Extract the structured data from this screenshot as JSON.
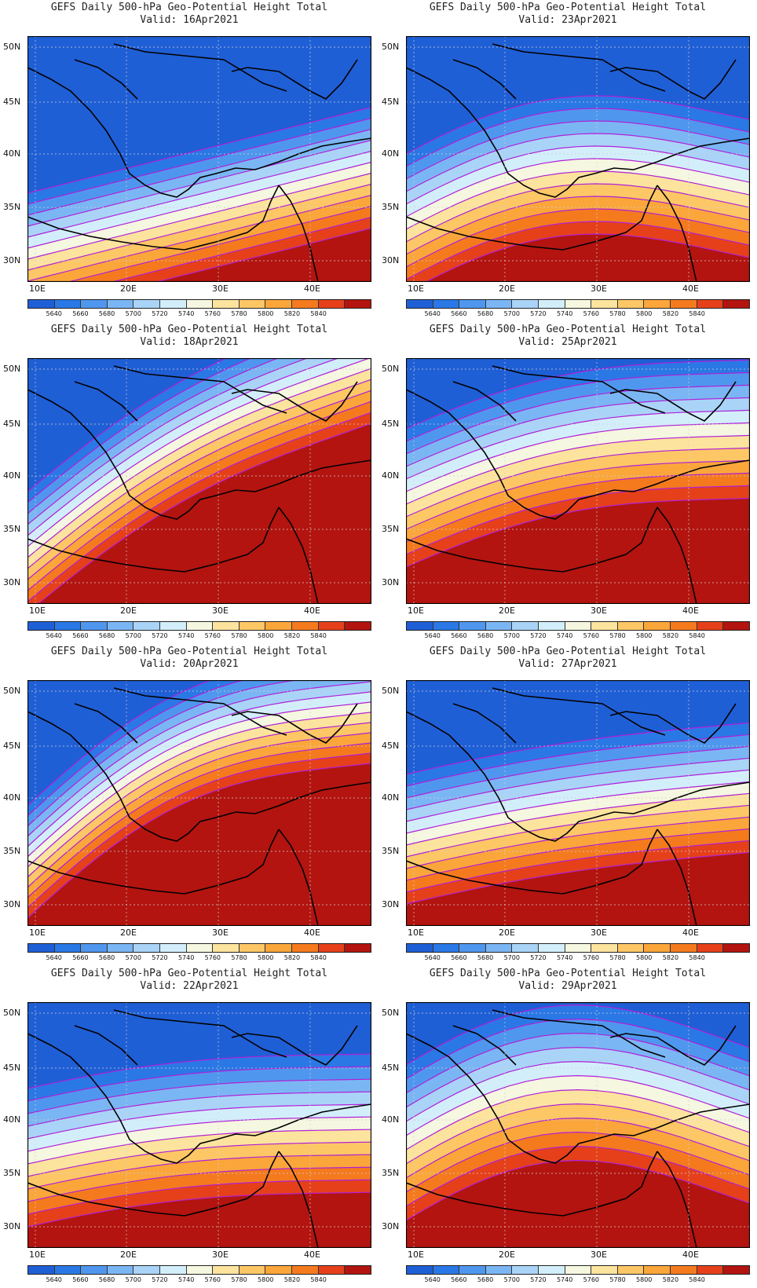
{
  "panels": [
    {
      "title": "GEFS Daily 500-hPa Geo-Potential Height Total",
      "valid": "Valid: 16Apr2021"
    },
    {
      "title": "GEFS Daily 500-hPa Geo-Potential Height Total",
      "valid": "Valid: 23Apr2021"
    },
    {
      "title": "GEFS Daily 500-hPa Geo-Potential Height Total",
      "valid": "Valid: 18Apr2021"
    },
    {
      "title": "GEFS Daily 500-hPa Geo-Potential Height Total",
      "valid": "Valid: 25Apr2021"
    },
    {
      "title": "GEFS Daily 500-hPa Geo-Potential Height Total",
      "valid": "Valid: 20Apr2021"
    },
    {
      "title": "GEFS Daily 500-hPa Geo-Potential Height Total",
      "valid": "Valid: 27Apr2021"
    },
    {
      "title": "GEFS Daily 500-hPa Geo-Potential Height Total",
      "valid": "Valid: 22Apr2021"
    },
    {
      "title": "GEFS Daily 500-hPa Geo-Potential Height Total",
      "valid": "Valid: 29Apr2021"
    }
  ],
  "lat_labels": [
    "50N",
    "45N",
    "40N",
    "35N",
    "30N"
  ],
  "lon_labels": [
    "10E",
    "20E",
    "30E",
    "40E"
  ],
  "colorbar": {
    "labels": [
      "5640",
      "5660",
      "5680",
      "5700",
      "5720",
      "5740",
      "5760",
      "5780",
      "5800",
      "5820",
      "5840"
    ],
    "colors": [
      "#1f5fd6",
      "#2a78e6",
      "#4f97ee",
      "#7bb6f4",
      "#a9d4f8",
      "#d3eefb",
      "#f5f7e0",
      "#fde49e",
      "#fdc766",
      "#fba63a",
      "#f57a1e",
      "#e6401a",
      "#b3140f"
    ]
  },
  "contour_color": "#b020d8"
}
